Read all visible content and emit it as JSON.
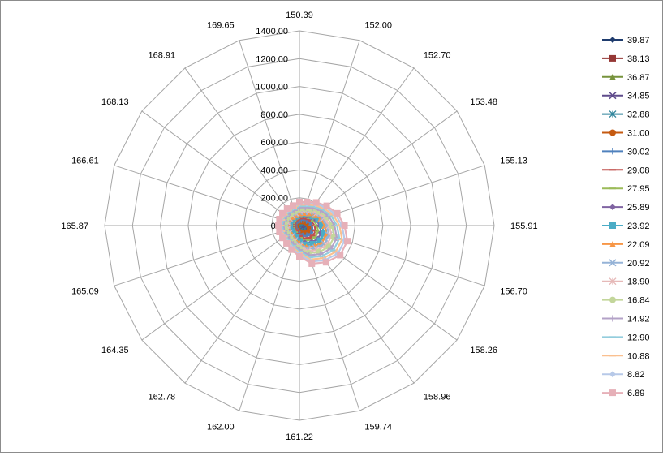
{
  "chart_data": {
    "type": "radar",
    "title": "",
    "categories": [
      "150.39",
      "152.00",
      "152.70",
      "153.48",
      "155.13",
      "155.91",
      "156.70",
      "158.26",
      "158.96",
      "159.74",
      "161.22",
      "162.00",
      "162.78",
      "164.35",
      "165.09",
      "165.87",
      "166.61",
      "168.13",
      "168.91",
      "169.65"
    ],
    "r_ticks": [
      "0.00",
      "200.00",
      "400.00",
      "600.00",
      "800.00",
      "1000.00",
      "1200.00",
      "1400.00"
    ],
    "rlim": [
      0,
      1400
    ],
    "grid": true,
    "legend_position": "right",
    "series": [
      {
        "name": "39.87",
        "color": "#1f3c6e",
        "marker": "diamond",
        "values": [
          5,
          6,
          7,
          8,
          10,
          11,
          12,
          12,
          11,
          10,
          8,
          7,
          6,
          6,
          6,
          6,
          6,
          6,
          6,
          6
        ]
      },
      {
        "name": "38.13",
        "color": "#953735",
        "marker": "square",
        "values": [
          10,
          12,
          15,
          18,
          22,
          25,
          28,
          28,
          26,
          22,
          18,
          14,
          12,
          11,
          11,
          11,
          11,
          11,
          11,
          11
        ]
      },
      {
        "name": "36.87",
        "color": "#77933c",
        "marker": "triangle",
        "values": [
          15,
          18,
          22,
          26,
          32,
          38,
          42,
          42,
          38,
          33,
          26,
          21,
          17,
          16,
          16,
          16,
          16,
          16,
          16,
          16
        ]
      },
      {
        "name": "34.85",
        "color": "#5f4b8b",
        "marker": "x",
        "values": [
          20,
          24,
          29,
          35,
          43,
          50,
          56,
          56,
          51,
          44,
          35,
          28,
          23,
          21,
          21,
          21,
          21,
          21,
          21,
          21
        ]
      },
      {
        "name": "32.88",
        "color": "#31859c",
        "marker": "star",
        "values": [
          25,
          30,
          35,
          42,
          52,
          60,
          68,
          68,
          62,
          53,
          42,
          34,
          28,
          26,
          26,
          26,
          26,
          26,
          26,
          26
        ]
      },
      {
        "name": "31.00",
        "color": "#c55a11",
        "marker": "circle",
        "values": [
          30,
          34,
          40,
          48,
          60,
          70,
          80,
          80,
          72,
          62,
          48,
          38,
          32,
          30,
          30,
          30,
          30,
          30,
          30,
          30
        ]
      },
      {
        "name": "30.02",
        "color": "#4f81bd",
        "marker": "plus",
        "values": [
          40,
          45,
          52,
          62,
          76,
          88,
          100,
          100,
          90,
          78,
          60,
          48,
          40,
          38,
          38,
          38,
          38,
          38,
          38,
          38
        ]
      },
      {
        "name": "29.08",
        "color": "#c0504d",
        "marker": "dash",
        "values": [
          50,
          56,
          64,
          76,
          94,
          108,
          122,
          122,
          110,
          96,
          74,
          60,
          50,
          47,
          47,
          47,
          47,
          47,
          47,
          47
        ]
      },
      {
        "name": "27.95",
        "color": "#9bbb59",
        "marker": "dash",
        "values": [
          60,
          66,
          76,
          90,
          110,
          126,
          142,
          142,
          128,
          112,
          88,
          70,
          59,
          56,
          56,
          56,
          56,
          56,
          56,
          56
        ]
      },
      {
        "name": "25.89",
        "color": "#8064a2",
        "marker": "diamond",
        "values": [
          70,
          78,
          88,
          104,
          128,
          146,
          164,
          164,
          148,
          130,
          102,
          82,
          69,
          65,
          65,
          65,
          65,
          65,
          65,
          65
        ]
      },
      {
        "name": "23.92",
        "color": "#4bacc6",
        "marker": "square",
        "values": [
          80,
          88,
          100,
          118,
          144,
          164,
          184,
          184,
          166,
          146,
          114,
          92,
          78,
          73,
          73,
          73,
          73,
          73,
          73,
          73
        ]
      },
      {
        "name": "22.09",
        "color": "#f79646",
        "marker": "triangle",
        "values": [
          90,
          98,
          112,
          132,
          160,
          182,
          204,
          204,
          184,
          162,
          126,
          102,
          86,
          81,
          81,
          81,
          81,
          81,
          81,
          81
        ]
      },
      {
        "name": "20.92",
        "color": "#95b3d7",
        "marker": "x",
        "values": [
          100,
          108,
          122,
          144,
          174,
          198,
          222,
          222,
          200,
          176,
          138,
          112,
          95,
          89,
          89,
          89,
          89,
          89,
          89,
          89
        ]
      },
      {
        "name": "18.90",
        "color": "#e6b9b8",
        "marker": "star",
        "values": [
          110,
          118,
          134,
          158,
          190,
          216,
          242,
          242,
          218,
          192,
          150,
          122,
          104,
          98,
          98,
          98,
          98,
          98,
          98,
          98
        ]
      },
      {
        "name": "16.84",
        "color": "#c3d69b",
        "marker": "circle",
        "values": [
          120,
          128,
          146,
          172,
          206,
          234,
          262,
          262,
          236,
          208,
          162,
          132,
          113,
          106,
          106,
          106,
          106,
          106,
          106,
          106
        ]
      },
      {
        "name": "14.92",
        "color": "#b3a2c7",
        "marker": "plus",
        "values": [
          130,
          138,
          158,
          186,
          222,
          252,
          282,
          282,
          254,
          224,
          174,
          142,
          122,
          115,
          115,
          115,
          115,
          115,
          115,
          115
        ]
      },
      {
        "name": "12.90",
        "color": "#93cddd",
        "marker": "dash",
        "values": [
          140,
          148,
          170,
          200,
          238,
          270,
          302,
          302,
          272,
          240,
          186,
          152,
          131,
          124,
          124,
          124,
          124,
          124,
          124,
          124
        ]
      },
      {
        "name": "10.88",
        "color": "#fac090",
        "marker": "dash",
        "values": [
          150,
          158,
          182,
          214,
          254,
          288,
          322,
          322,
          290,
          256,
          198,
          162,
          140,
          133,
          133,
          133,
          133,
          133,
          133,
          133
        ]
      },
      {
        "name": "8.82",
        "color": "#b7c9e8",
        "marker": "diamond",
        "values": [
          160,
          168,
          194,
          228,
          270,
          306,
          342,
          342,
          308,
          272,
          210,
          172,
          149,
          142,
          142,
          142,
          142,
          142,
          142,
          142
        ]
      },
      {
        "name": "6.89",
        "color": "#e6b0b8",
        "marker": "square",
        "values": [
          170,
          178,
          206,
          242,
          286,
          324,
          362,
          362,
          326,
          288,
          222,
          182,
          158,
          151,
          151,
          151,
          151,
          151,
          151,
          151
        ]
      }
    ]
  }
}
